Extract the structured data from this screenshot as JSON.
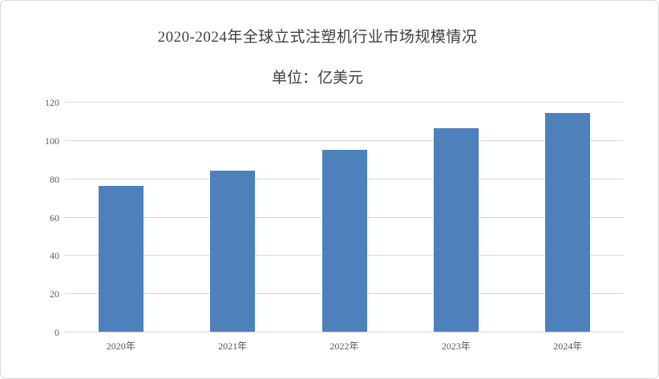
{
  "chart_data": {
    "type": "bar",
    "title": "2020-2024年全球立式注塑机行业市场规模情况",
    "subtitle": "单位：亿美元",
    "categories": [
      "2020年",
      "2021年",
      "2022年",
      "2023年",
      "2024年"
    ],
    "values": [
      76,
      84,
      95,
      106,
      114
    ],
    "xlabel": "",
    "ylabel": "",
    "ylim": [
      0,
      120
    ],
    "y_ticks": [
      0,
      20,
      40,
      60,
      80,
      100,
      120
    ],
    "grid": true,
    "legend_position": "none",
    "bar_color": "#4e80bc",
    "gridline_color": "#d9d9d9",
    "tick_label_color": "#595959",
    "title_color": "#3f3f3f",
    "frame_border_color": "#d8d8d8",
    "background_color": "#ffffff"
  }
}
